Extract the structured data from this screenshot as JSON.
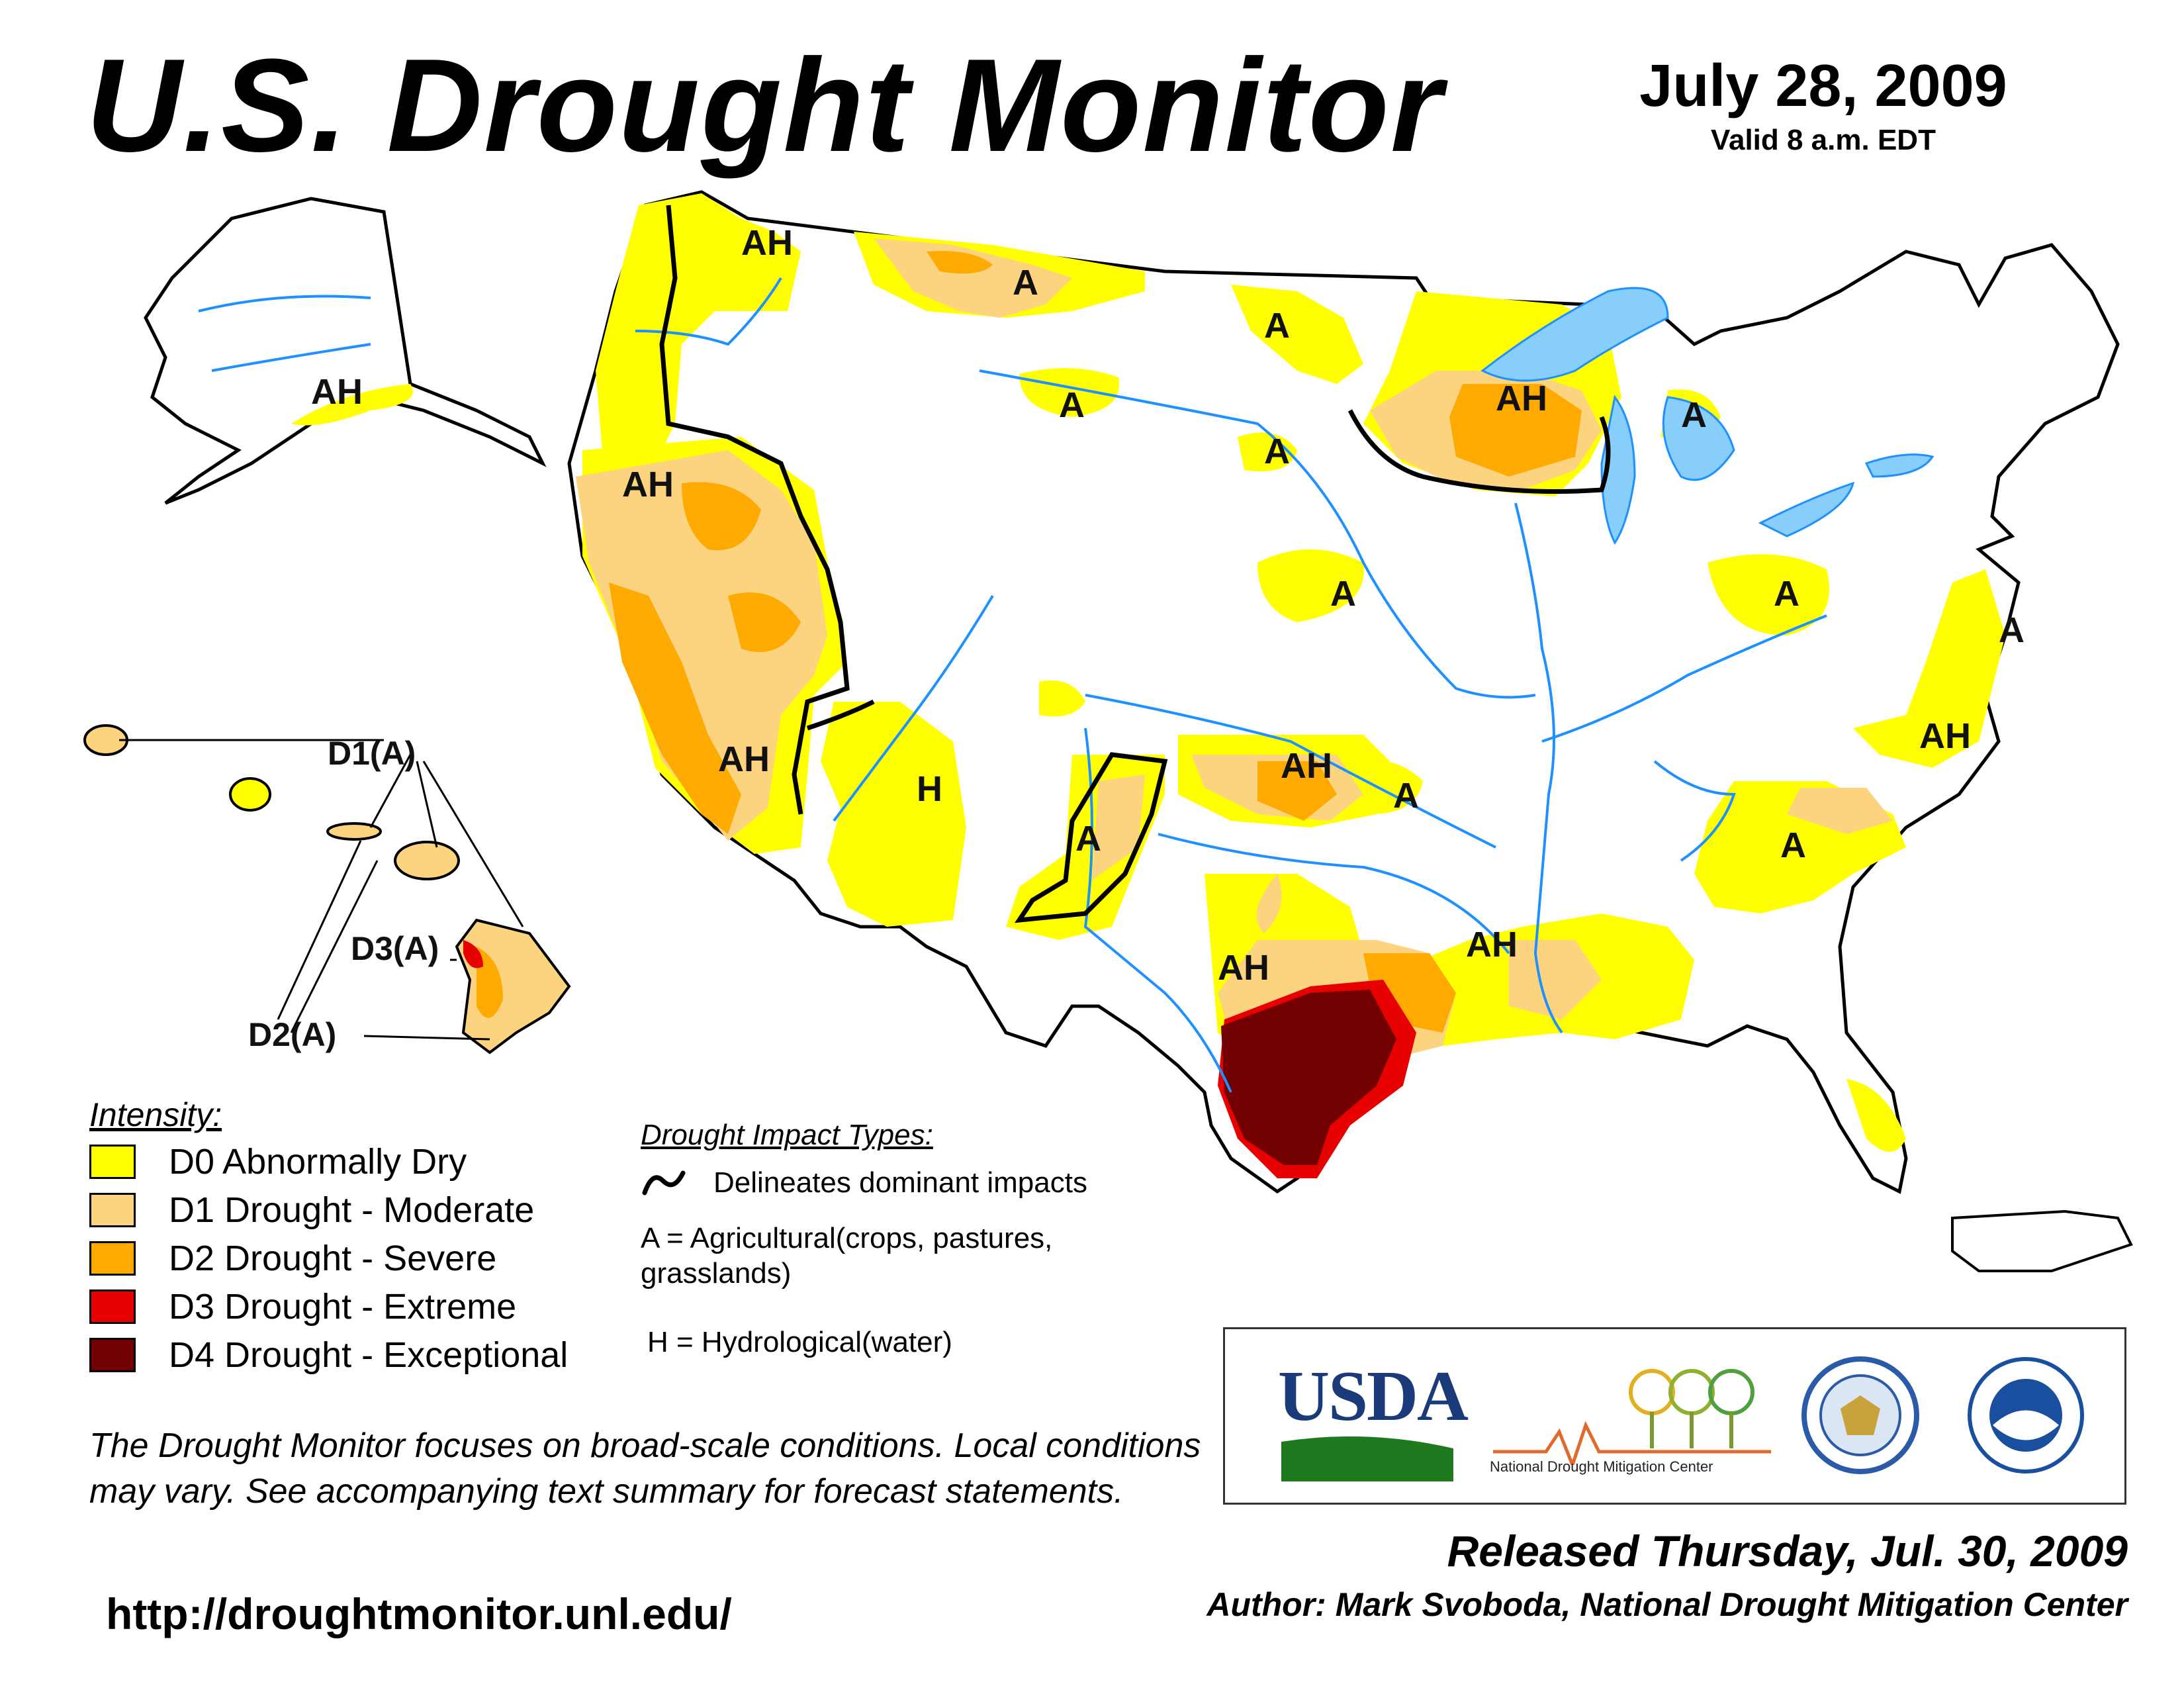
{
  "header": {
    "title": "U.S. Drought Monitor",
    "date": "July 28, 2009",
    "valid": "Valid 8 a.m. EDT"
  },
  "colors": {
    "D0": "#ffff00",
    "D1": "#fcd37f",
    "D2": "#ffaa00",
    "D3": "#e60000",
    "D4": "#730000",
    "water": "#87cefa",
    "rivers": "#1e90ff"
  },
  "map_labels": {
    "wa": "AH",
    "mt": "A",
    "nd": "A",
    "mt_south": "A",
    "sd": "A",
    "ne": "A",
    "mn_wi": "AH",
    "mi": "A",
    "ca": "AH",
    "ca_south": "AH",
    "az": "H",
    "nm": "A",
    "ks_ok": "AH",
    "mo_ok": "A",
    "tx": "AH",
    "la": "AH",
    "oh": "A",
    "md": "A",
    "va_nc": "AH",
    "ga_sc": "A",
    "ak": "AH"
  },
  "hawaii_labels": {
    "d1": "D1(A)",
    "d3": "D3(A)",
    "d2": "D2(A)"
  },
  "legend": {
    "title": "Intensity:",
    "items": [
      {
        "code": "D0",
        "label": "D0 Abnormally Dry"
      },
      {
        "code": "D1",
        "label": "D1 Drought - Moderate"
      },
      {
        "code": "D2",
        "label": "D2 Drought - Severe"
      },
      {
        "code": "D3",
        "label": "D3 Drought - Extreme"
      },
      {
        "code": "D4",
        "label": "D4 Drought - Exceptional"
      }
    ]
  },
  "impacts": {
    "title": "Drought Impact Types:",
    "delineates": "Delineates dominant impacts",
    "agricultural": "A = Agricultural(crops, pastures, grasslands)",
    "hydrological": "H = Hydrological(water)"
  },
  "note": "The Drought Monitor focuses on broad-scale conditions. Local conditions may vary. See accompanying text summary for forecast statements.",
  "url": "http://droughtmonitor.unl.edu/",
  "logos": {
    "usda": "USDA",
    "ndmc": "National Drought Mitigation Center"
  },
  "released": "Released Thursday, Jul. 30, 2009",
  "author": "Author: Mark Svoboda, National Drought Mitigation Center"
}
